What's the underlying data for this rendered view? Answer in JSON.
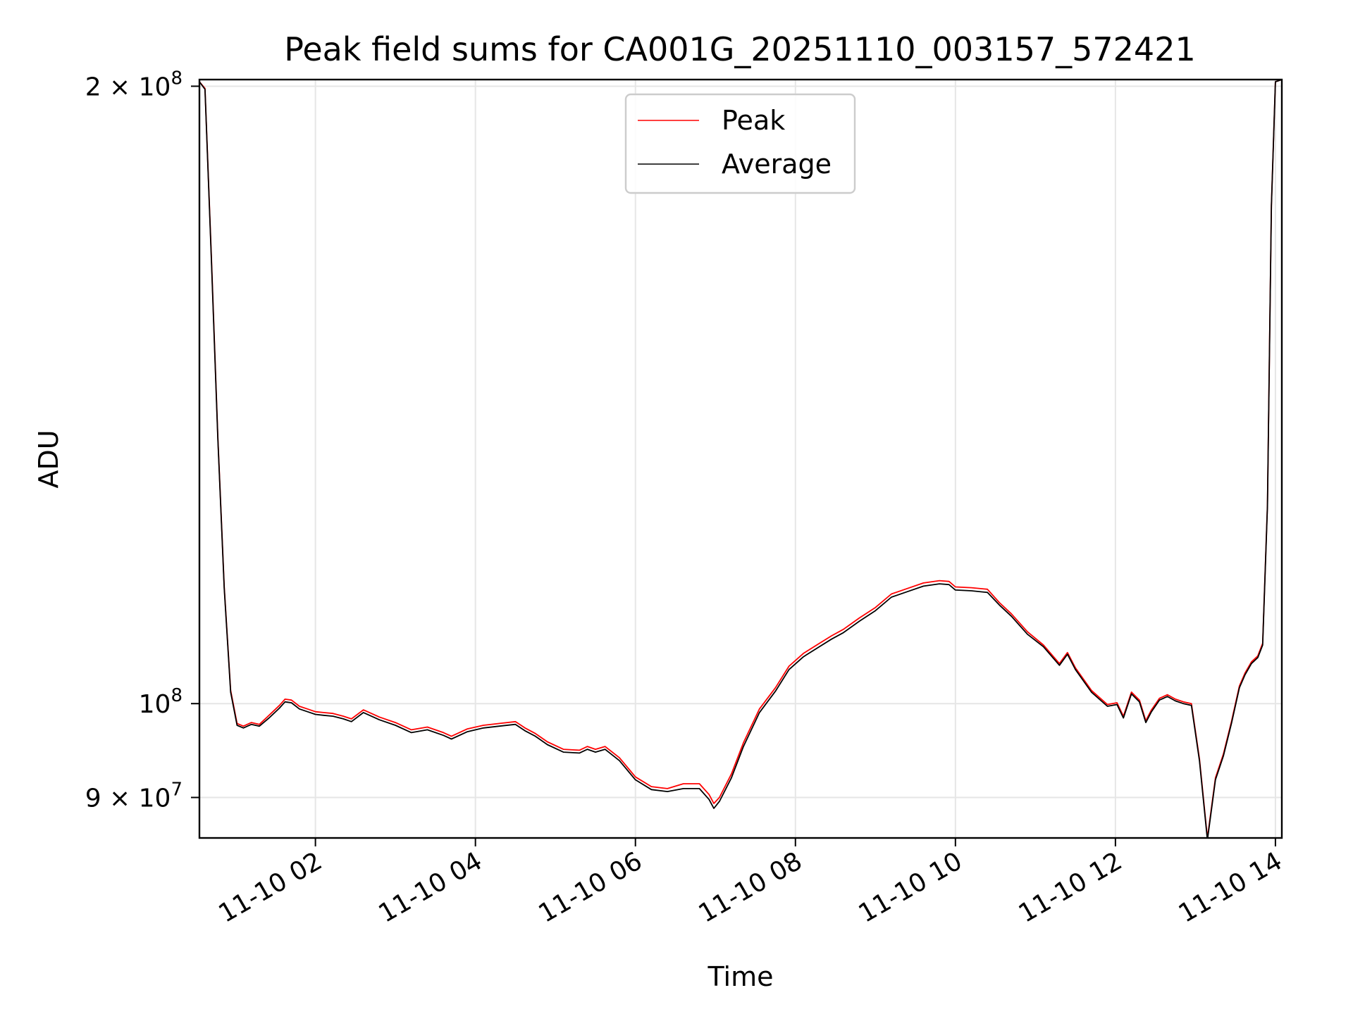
{
  "chart_data": {
    "type": "line",
    "title": "Peak field sums for CA001G_20251110_003157_572421",
    "xlabel": "Time",
    "ylabel": "ADU",
    "x_unit": "hours",
    "xlim": [
      0.55,
      14.08
    ],
    "ylim": [
      86000000,
      201500000
    ],
    "yscale": "log",
    "grid": true,
    "legend_position": "upper-center",
    "x_ticks": [
      {
        "value": 2,
        "label": "11-10 02"
      },
      {
        "value": 4,
        "label": "11-10 04"
      },
      {
        "value": 6,
        "label": "11-10 06"
      },
      {
        "value": 8,
        "label": "11-10 08"
      },
      {
        "value": 10,
        "label": "11-10 10"
      },
      {
        "value": 12,
        "label": "11-10 12"
      },
      {
        "value": 14,
        "label": "11-10 14"
      }
    ],
    "y_ticks": [
      {
        "value": 200000000,
        "base": "2 × 10",
        "exp": "8"
      },
      {
        "value": 100000000,
        "base": "10",
        "exp": "8"
      },
      {
        "value": 90000000,
        "base": "9 × 10",
        "exp": "7"
      }
    ],
    "series": [
      {
        "name": "Peak",
        "color": "#ff0000",
        "x": [
          0.55,
          0.62,
          0.7,
          0.78,
          0.86,
          0.94,
          1.02,
          1.1,
          1.2,
          1.3,
          1.42,
          1.55,
          1.62,
          1.7,
          1.8,
          1.9,
          2.0,
          2.1,
          2.22,
          2.35,
          2.45,
          2.6,
          2.8,
          3.0,
          3.2,
          3.4,
          3.6,
          3.7,
          3.9,
          4.1,
          4.3,
          4.5,
          4.62,
          4.75,
          4.9,
          5.1,
          5.3,
          5.4,
          5.5,
          5.62,
          5.8,
          6.0,
          6.2,
          6.4,
          6.6,
          6.8,
          6.92,
          6.98,
          7.05,
          7.2,
          7.35,
          7.55,
          7.75,
          7.92,
          8.1,
          8.3,
          8.45,
          8.6,
          8.8,
          9.0,
          9.2,
          9.4,
          9.6,
          9.8,
          9.92,
          10.0,
          10.2,
          10.4,
          10.55,
          10.7,
          10.9,
          11.1,
          11.3,
          11.4,
          11.5,
          11.7,
          11.9,
          12.02,
          12.1,
          12.2,
          12.3,
          12.38,
          12.45,
          12.55,
          12.65,
          12.75,
          12.85,
          12.95,
          13.05,
          13.15,
          13.25,
          13.35,
          13.45,
          13.55,
          13.62,
          13.7,
          13.78,
          13.84,
          13.9,
          13.95,
          14.0,
          14.08
        ],
        "y": [
          201000000,
          199500000,
          165000000,
          135000000,
          114000000,
          101500000,
          97800000,
          97500000,
          97900000,
          97700000,
          98700000,
          99800000,
          100500000,
          100400000,
          99700000,
          99400000,
          99100000,
          99000000,
          98900000,
          98600000,
          98300000,
          99300000,
          98500000,
          97900000,
          97100000,
          97400000,
          96800000,
          96400000,
          97200000,
          97600000,
          97800000,
          98000000,
          97300000,
          96700000,
          95800000,
          95000000,
          94900000,
          95300000,
          95000000,
          95300000,
          94100000,
          92100000,
          91100000,
          90900000,
          91400000,
          91400000,
          90300000,
          89400000,
          90000000,
          92400000,
          95700000,
          99400000,
          101800000,
          104300000,
          105800000,
          107000000,
          107900000,
          108700000,
          110100000,
          111400000,
          113100000,
          113800000,
          114500000,
          114800000,
          114700000,
          114000000,
          113900000,
          113700000,
          112000000,
          110600000,
          108400000,
          106800000,
          104600000,
          105900000,
          104100000,
          101500000,
          99900000,
          100100000,
          98600000,
          101300000,
          100400000,
          98100000,
          99300000,
          100600000,
          101000000,
          100500000,
          100200000,
          100000000,
          94000000,
          86000000,
          92000000,
          94500000,
          98000000,
          102000000,
          103500000,
          104800000,
          105500000,
          107000000,
          125000000,
          175000000,
          201000000,
          201500000
        ]
      },
      {
        "name": "Average",
        "color": "#000000",
        "x": [
          0.55,
          0.62,
          0.7,
          0.78,
          0.86,
          0.94,
          1.02,
          1.1,
          1.2,
          1.3,
          1.42,
          1.55,
          1.62,
          1.7,
          1.8,
          1.9,
          2.0,
          2.1,
          2.22,
          2.35,
          2.45,
          2.6,
          2.8,
          3.0,
          3.2,
          3.4,
          3.6,
          3.7,
          3.9,
          4.1,
          4.3,
          4.5,
          4.62,
          4.75,
          4.9,
          5.1,
          5.3,
          5.4,
          5.5,
          5.62,
          5.8,
          6.0,
          6.2,
          6.4,
          6.6,
          6.8,
          6.92,
          6.98,
          7.05,
          7.2,
          7.35,
          7.55,
          7.75,
          7.92,
          8.1,
          8.3,
          8.45,
          8.6,
          8.8,
          9.0,
          9.2,
          9.4,
          9.6,
          9.8,
          9.92,
          10.0,
          10.2,
          10.4,
          10.55,
          10.7,
          10.9,
          11.1,
          11.3,
          11.4,
          11.5,
          11.7,
          11.9,
          12.02,
          12.1,
          12.2,
          12.3,
          12.38,
          12.45,
          12.55,
          12.65,
          12.75,
          12.85,
          12.95,
          13.05,
          13.15,
          13.25,
          13.35,
          13.45,
          13.55,
          13.62,
          13.7,
          13.78,
          13.84,
          13.9,
          13.95,
          14.0,
          14.08
        ],
        "y": [
          201000000,
          199300000,
          164500000,
          134700000,
          113800000,
          101300000,
          97600000,
          97300000,
          97700000,
          97500000,
          98400000,
          99500000,
          100200000,
          100100000,
          99400000,
          99100000,
          98800000,
          98700000,
          98600000,
          98300000,
          98000000,
          99000000,
          98200000,
          97600000,
          96800000,
          97100000,
          96500000,
          96100000,
          96900000,
          97300000,
          97500000,
          97700000,
          97000000,
          96400000,
          95500000,
          94700000,
          94600000,
          95000000,
          94700000,
          95000000,
          93800000,
          91800000,
          90800000,
          90600000,
          90900000,
          90900000,
          89800000,
          88900000,
          89600000,
          92000000,
          95300000,
          99000000,
          101400000,
          103900000,
          105400000,
          106600000,
          107500000,
          108300000,
          109700000,
          111000000,
          112700000,
          113400000,
          114100000,
          114400000,
          114300000,
          113600000,
          113500000,
          113300000,
          111700000,
          110300000,
          108100000,
          106600000,
          104400000,
          105700000,
          103900000,
          101300000,
          99700000,
          99900000,
          98400000,
          101100000,
          100200000,
          97900000,
          99100000,
          100400000,
          100800000,
          100300000,
          100000000,
          99800000,
          93800000,
          85800000,
          91800000,
          94300000,
          97800000,
          101800000,
          103300000,
          104600000,
          105300000,
          106800000,
          124800000,
          174800000,
          201000000,
          201500000
        ]
      }
    ]
  },
  "legend": {
    "peak_label": "Peak",
    "average_label": "Average"
  }
}
